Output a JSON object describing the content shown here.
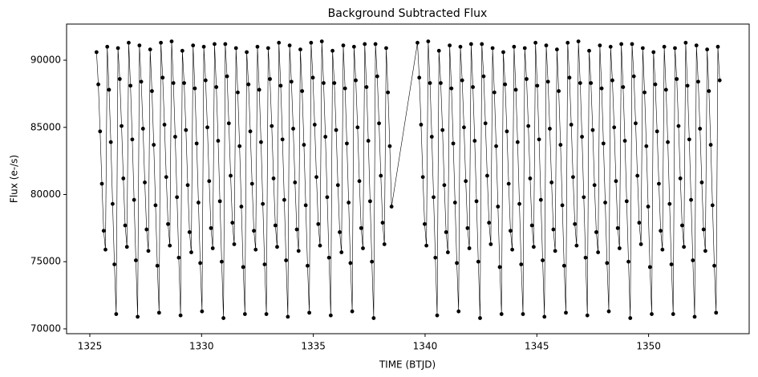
{
  "chart_data": {
    "type": "line",
    "title": "Background Subtracted Flux",
    "x_label": "TIME (BTJD)",
    "y_label": "Flux (e-/s)",
    "color": "#000000",
    "markers": true,
    "xlim": [
      1323.96,
      1354.5
    ],
    "ylim": [
      69640,
      92690
    ],
    "xticks": [
      1325,
      1330,
      1335,
      1340,
      1345,
      1350
    ],
    "yticks": [
      70000,
      75000,
      80000,
      85000,
      90000
    ],
    "x": [
      1325.3,
      1325.38,
      1325.46,
      1325.54,
      1325.62,
      1325.7,
      1325.78,
      1325.86,
      1325.94,
      1326.02,
      1326.1,
      1326.18,
      1326.26,
      1326.34,
      1326.42,
      1326.5,
      1326.58,
      1326.66,
      1326.74,
      1326.82,
      1326.9,
      1326.98,
      1327.06,
      1327.14,
      1327.22,
      1327.3,
      1327.38,
      1327.46,
      1327.54,
      1327.62,
      1327.7,
      1327.78,
      1327.86,
      1327.94,
      1328.02,
      1328.1,
      1328.18,
      1328.26,
      1328.34,
      1328.42,
      1328.5,
      1328.58,
      1328.66,
      1328.74,
      1328.82,
      1328.9,
      1328.98,
      1329.06,
      1329.14,
      1329.22,
      1329.3,
      1329.38,
      1329.46,
      1329.54,
      1329.62,
      1329.7,
      1329.78,
      1329.86,
      1329.94,
      1330.02,
      1330.1,
      1330.18,
      1330.26,
      1330.34,
      1330.42,
      1330.5,
      1330.58,
      1330.66,
      1330.74,
      1330.82,
      1330.9,
      1330.98,
      1331.06,
      1331.14,
      1331.22,
      1331.3,
      1331.38,
      1331.46,
      1331.54,
      1331.62,
      1331.7,
      1331.78,
      1331.86,
      1331.94,
      1332.02,
      1332.1,
      1332.18,
      1332.26,
      1332.34,
      1332.42,
      1332.5,
      1332.58,
      1332.66,
      1332.74,
      1332.82,
      1332.9,
      1332.98,
      1333.06,
      1333.14,
      1333.22,
      1333.3,
      1333.38,
      1333.46,
      1333.54,
      1333.62,
      1333.7,
      1333.78,
      1333.86,
      1333.94,
      1334.02,
      1334.1,
      1334.18,
      1334.26,
      1334.34,
      1334.42,
      1334.5,
      1334.58,
      1334.66,
      1334.74,
      1334.82,
      1334.9,
      1334.98,
      1335.06,
      1335.14,
      1335.22,
      1335.3,
      1335.38,
      1335.46,
      1335.54,
      1335.62,
      1335.7,
      1335.78,
      1335.86,
      1335.94,
      1336.02,
      1336.1,
      1336.18,
      1336.26,
      1336.34,
      1336.42,
      1336.5,
      1336.58,
      1336.66,
      1336.74,
      1336.82,
      1336.9,
      1336.98,
      1337.06,
      1337.14,
      1337.22,
      1337.3,
      1337.38,
      1337.46,
      1337.54,
      1337.62,
      1337.7,
      1337.78,
      1337.86,
      1337.94,
      1338.02,
      1338.1,
      1338.18,
      1338.26,
      1338.34,
      1338.42,
      1338.5,
      1339.66,
      1339.74,
      1339.82,
      1339.9,
      1339.98,
      1340.06,
      1340.14,
      1340.22,
      1340.3,
      1340.38,
      1340.46,
      1340.54,
      1340.62,
      1340.7,
      1340.78,
      1340.86,
      1340.94,
      1341.02,
      1341.1,
      1341.18,
      1341.26,
      1341.34,
      1341.42,
      1341.5,
      1341.58,
      1341.66,
      1341.74,
      1341.82,
      1341.9,
      1341.98,
      1342.06,
      1342.14,
      1342.22,
      1342.3,
      1342.38,
      1342.46,
      1342.54,
      1342.62,
      1342.7,
      1342.78,
      1342.86,
      1342.94,
      1343.02,
      1343.1,
      1343.18,
      1343.26,
      1343.34,
      1343.42,
      1343.5,
      1343.58,
      1343.66,
      1343.74,
      1343.82,
      1343.9,
      1343.98,
      1344.06,
      1344.14,
      1344.22,
      1344.3,
      1344.38,
      1344.46,
      1344.54,
      1344.62,
      1344.7,
      1344.78,
      1344.86,
      1344.94,
      1345.02,
      1345.1,
      1345.18,
      1345.26,
      1345.34,
      1345.42,
      1345.5,
      1345.58,
      1345.66,
      1345.74,
      1345.82,
      1345.9,
      1345.98,
      1346.06,
      1346.14,
      1346.22,
      1346.3,
      1346.38,
      1346.46,
      1346.54,
      1346.62,
      1346.7,
      1346.78,
      1346.86,
      1346.94,
      1347.02,
      1347.1,
      1347.18,
      1347.26,
      1347.34,
      1347.42,
      1347.5,
      1347.58,
      1347.66,
      1347.74,
      1347.82,
      1347.9,
      1347.98,
      1348.06,
      1348.14,
      1348.22,
      1348.3,
      1348.38,
      1348.46,
      1348.54,
      1348.62,
      1348.7,
      1348.78,
      1348.86,
      1348.94,
      1349.02,
      1349.1,
      1349.18,
      1349.26,
      1349.34,
      1349.42,
      1349.5,
      1349.58,
      1349.66,
      1349.74,
      1349.82,
      1349.9,
      1349.98,
      1350.06,
      1350.14,
      1350.22,
      1350.3,
      1350.38,
      1350.46,
      1350.54,
      1350.62,
      1350.7,
      1350.78,
      1350.86,
      1350.94,
      1351.02,
      1351.1,
      1351.18,
      1351.26,
      1351.34,
      1351.42,
      1351.5,
      1351.58,
      1351.66,
      1351.74,
      1351.82,
      1351.9,
      1351.98,
      1352.06,
      1352.14,
      1352.22,
      1352.3,
      1352.38,
      1352.46,
      1352.54,
      1352.62,
      1352.7,
      1352.78,
      1352.86,
      1352.94,
      1353.02,
      1353.1,
      1353.18
    ],
    "values": [
      90600,
      88200,
      84700,
      80800,
      77300,
      75900,
      91000,
      87800,
      83900,
      79300,
      74800,
      71100,
      90900,
      88600,
      85100,
      81200,
      77700,
      76100,
      91300,
      88100,
      84100,
      79600,
      75100,
      70900,
      91100,
      88400,
      84900,
      80900,
      77400,
      75800,
      90800,
      87700,
      83700,
      79200,
      74700,
      71200,
      91300,
      88700,
      85200,
      81300,
      77800,
      76200,
      91400,
      88300,
      84300,
      79800,
      75300,
      71000,
      90700,
      88300,
      84800,
      80700,
      77200,
      75700,
      91100,
      87900,
      83800,
      79400,
      74900,
      71300,
      91000,
      88500,
      85000,
      81000,
      77500,
      76000,
      91200,
      88000,
      84000,
      79500,
      75000,
      70800,
      91200,
      88800,
      85300,
      81400,
      77900,
      76300,
      90900,
      87600,
      83600,
      79100,
      74600,
      71100,
      90600,
      88200,
      84700,
      80800,
      77300,
      75900,
      91000,
      87800,
      83900,
      79300,
      74800,
      71100,
      90900,
      88600,
      85100,
      81200,
      77700,
      76100,
      91300,
      88100,
      84100,
      79600,
      75100,
      70900,
      91100,
      88400,
      84900,
      80900,
      77400,
      75800,
      90800,
      87700,
      83700,
      79200,
      74700,
      71200,
      91300,
      88700,
      85200,
      81300,
      77800,
      76200,
      91400,
      88300,
      84300,
      79800,
      75300,
      71000,
      90700,
      88300,
      84800,
      80700,
      77200,
      75700,
      91100,
      87900,
      83800,
      79400,
      74900,
      71300,
      91000,
      88500,
      85000,
      81000,
      77500,
      76000,
      91200,
      88000,
      84000,
      79500,
      75000,
      70800,
      91200,
      88800,
      85300,
      81400,
      77900,
      76300,
      90900,
      87600,
      83600,
      79100,
      91300,
      88700,
      85200,
      81300,
      77800,
      76200,
      91400,
      88300,
      84300,
      79800,
      75300,
      71000,
      90700,
      88300,
      84800,
      80700,
      77200,
      75700,
      91100,
      87900,
      83800,
      79400,
      74900,
      71300,
      91000,
      88500,
      85000,
      81000,
      77500,
      76000,
      91200,
      88000,
      84000,
      79500,
      75000,
      70800,
      91200,
      88800,
      85300,
      81400,
      77900,
      76300,
      90900,
      87600,
      83600,
      79100,
      74600,
      71100,
      90600,
      88200,
      84700,
      80800,
      77300,
      75900,
      91000,
      87800,
      83900,
      79300,
      74800,
      71100,
      90900,
      88600,
      85100,
      81200,
      77700,
      76100,
      91300,
      88100,
      84100,
      79600,
      75100,
      70900,
      91100,
      88400,
      84900,
      80900,
      77400,
      75800,
      90800,
      87700,
      83700,
      79200,
      74700,
      71200,
      91300,
      88700,
      85200,
      81300,
      77800,
      76200,
      91400,
      88300,
      84300,
      79800,
      75300,
      71000,
      90700,
      88300,
      84800,
      80700,
      77200,
      75700,
      91100,
      87900,
      83800,
      79400,
      74900,
      71300,
      91000,
      88500,
      85000,
      81000,
      77500,
      76000,
      91200,
      88000,
      84000,
      79500,
      75000,
      70800,
      91200,
      88800,
      85300,
      81400,
      77900,
      76300,
      90900,
      87600,
      83600,
      79100,
      74600,
      71100,
      90600,
      88200,
      84700,
      80800,
      77300,
      75900,
      91000,
      87800,
      83900,
      79300,
      74800,
      71100,
      90900,
      88600,
      85100,
      81200,
      77700,
      76100,
      91300,
      88100,
      84100,
      79600,
      75100,
      70900,
      91100,
      88400,
      84900,
      80900,
      77400,
      75800,
      90800,
      87700,
      83700,
      79200,
      74700,
      71200,
      91000,
      88500
    ]
  }
}
